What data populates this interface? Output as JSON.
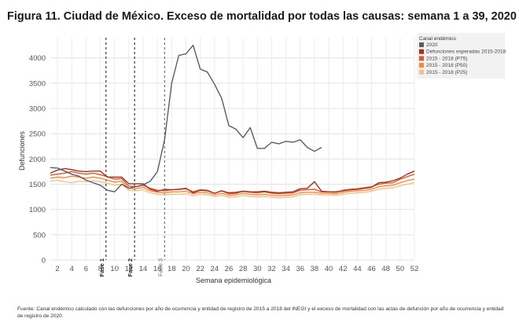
{
  "title": "Figura 11. Ciudad de México. Exceso de mortalidad por todas las causas: semana 1 a 39, 2020",
  "source_note": "Fuente: Canal endémico calculado con las defunciones por año de ocurrencia y entidad de registro de 2015 a 2018 del INEGI y el exceso de mortalidad con las actas de defunción por año de ocurrencia y entidad de registro de 2020.",
  "chart_data": {
    "type": "line",
    "xlabel": "Semana epidemiológica",
    "ylabel": "Defunciones",
    "xlim": [
      1,
      52
    ],
    "ylim": [
      0,
      4400
    ],
    "x_ticks": [
      "2",
      "4",
      "6",
      "8",
      "10",
      "12",
      "14",
      "16",
      "18",
      "20",
      "22",
      "24",
      "26",
      "28",
      "30",
      "32",
      "34",
      "36",
      "38",
      "40",
      "42",
      "44",
      "46",
      "48",
      "50",
      "52"
    ],
    "y_ticks": [
      "0",
      "500",
      "1000",
      "1500",
      "2000",
      "2500",
      "3000",
      "3500",
      "4000"
    ],
    "grid": true,
    "legend_title": "Canal endémico",
    "legend_position": "top-right",
    "phases": [
      {
        "label": "Fase 1",
        "week": 8.8,
        "style": "bold"
      },
      {
        "label": "Fase 2",
        "week": 12.8,
        "style": "bold"
      },
      {
        "label": "Fase 3",
        "week": 17,
        "style": "faded"
      }
    ],
    "series": [
      {
        "name": "2020",
        "color": "#5c5c66",
        "x_start": 1,
        "values": [
          1830,
          1820,
          1760,
          1700,
          1660,
          1580,
          1530,
          1480,
          1380,
          1350,
          1500,
          1420,
          1450,
          1490,
          1560,
          1750,
          2380,
          3500,
          4050,
          4080,
          4250,
          3780,
          3720,
          3480,
          3200,
          2660,
          2590,
          2420,
          2620,
          2210,
          2210,
          2330,
          2300,
          2350,
          2330,
          2380,
          2230,
          2150,
          2230
        ]
      },
      {
        "name": "Defunciones esperadas 2015-2018",
        "color": "#a2321f",
        "x_start": 1,
        "values": [
          1720,
          1780,
          1810,
          1790,
          1760,
          1750,
          1760,
          1760,
          1640,
          1640,
          1640,
          1510,
          1510,
          1510,
          1400,
          1360,
          1400,
          1390,
          1400,
          1420,
          1330,
          1380,
          1370,
          1320,
          1370,
          1330,
          1340,
          1360,
          1350,
          1350,
          1360,
          1340,
          1330,
          1340,
          1350,
          1410,
          1420,
          1550,
          1360,
          1350,
          1350,
          1370,
          1390,
          1400,
          1420,
          1440,
          1530,
          1540,
          1570,
          1620,
          1700,
          1760
        ]
      },
      {
        "name": "2015 - 2018 (P75)",
        "color": "#e2562a",
        "x_start": 1,
        "values": [
          1680,
          1700,
          1720,
          1750,
          1720,
          1700,
          1720,
          1690,
          1650,
          1600,
          1610,
          1460,
          1450,
          1480,
          1420,
          1380,
          1370,
          1390,
          1400,
          1410,
          1350,
          1390,
          1380,
          1320,
          1370,
          1310,
          1320,
          1360,
          1340,
          1330,
          1350,
          1320,
          1310,
          1320,
          1330,
          1380,
          1390,
          1400,
          1350,
          1350,
          1340,
          1380,
          1400,
          1410,
          1430,
          1450,
          1500,
          1520,
          1530,
          1600,
          1650,
          1700
        ]
      },
      {
        "name": "2015 - 2018 (P50)",
        "color": "#f28c3c",
        "x_start": 1,
        "values": [
          1620,
          1640,
          1630,
          1660,
          1640,
          1620,
          1640,
          1620,
          1580,
          1540,
          1560,
          1420,
          1410,
          1440,
          1370,
          1340,
          1330,
          1350,
          1350,
          1360,
          1310,
          1340,
          1330,
          1290,
          1320,
          1280,
          1290,
          1320,
          1300,
          1290,
          1300,
          1280,
          1270,
          1280,
          1290,
          1330,
          1340,
          1340,
          1320,
          1320,
          1310,
          1340,
          1360,
          1370,
          1380,
          1400,
          1450,
          1470,
          1480,
          1530,
          1570,
          1600
        ]
      },
      {
        "name": "2015 - 2018 (P25)",
        "color": "#f9bf87",
        "x_start": 1,
        "values": [
          1560,
          1580,
          1550,
          1530,
          1560,
          1550,
          1570,
          1550,
          1520,
          1480,
          1500,
          1380,
          1370,
          1390,
          1330,
          1300,
          1290,
          1300,
          1300,
          1310,
          1270,
          1300,
          1290,
          1260,
          1280,
          1240,
          1250,
          1280,
          1260,
          1250,
          1260,
          1240,
          1230,
          1240,
          1250,
          1290,
          1300,
          1300,
          1290,
          1290,
          1280,
          1300,
          1320,
          1330,
          1340,
          1360,
          1400,
          1420,
          1430,
          1470,
          1500,
          1530
        ]
      }
    ]
  }
}
